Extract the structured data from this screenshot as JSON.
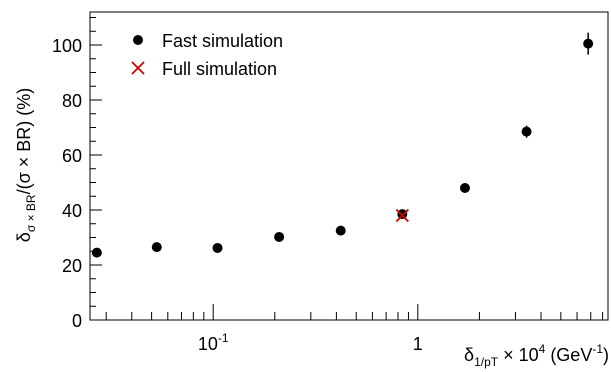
{
  "chart_data": {
    "type": "scatter",
    "xscale": "log",
    "xlim": [
      0.025,
      8.5
    ],
    "ylim": [
      0,
      112
    ],
    "y_ticks": [
      0,
      20,
      40,
      60,
      80,
      100
    ],
    "x_ticks_labeled": [
      {
        "value": 0.1,
        "base": "10",
        "exp": "-1"
      },
      {
        "value": 1,
        "base": "1",
        "exp": ""
      }
    ],
    "grid": false,
    "legend_position": "top-left",
    "xlabel": {
      "delta": "δ",
      "sub": "1/pT",
      "mid": " × 10",
      "sup1": "4",
      "unit": " (GeV",
      "sup2": "-1",
      "close": ")"
    },
    "ylabel": {
      "delta": "δ",
      "sub": "σ × BR",
      "rest": "/(σ × BR) (%)"
    },
    "series": [
      {
        "name": "Fast simulation",
        "marker": "circle",
        "color": "#000000",
        "x": [
          0.027,
          0.053,
          0.105,
          0.21,
          0.42,
          0.84,
          1.7,
          3.4,
          6.8
        ],
        "y": [
          24.5,
          26.5,
          26.2,
          30.2,
          32.5,
          38.5,
          48.0,
          68.5,
          100.5
        ],
        "yerr": [
          0.6,
          0.6,
          0.6,
          0.7,
          0.8,
          1.0,
          1.3,
          2.2,
          4.0
        ]
      },
      {
        "name": "Full simulation",
        "marker": "x",
        "color": "#cc0000",
        "x": [
          0.84
        ],
        "y": [
          38.0
        ],
        "yerr": [
          0
        ]
      }
    ]
  }
}
